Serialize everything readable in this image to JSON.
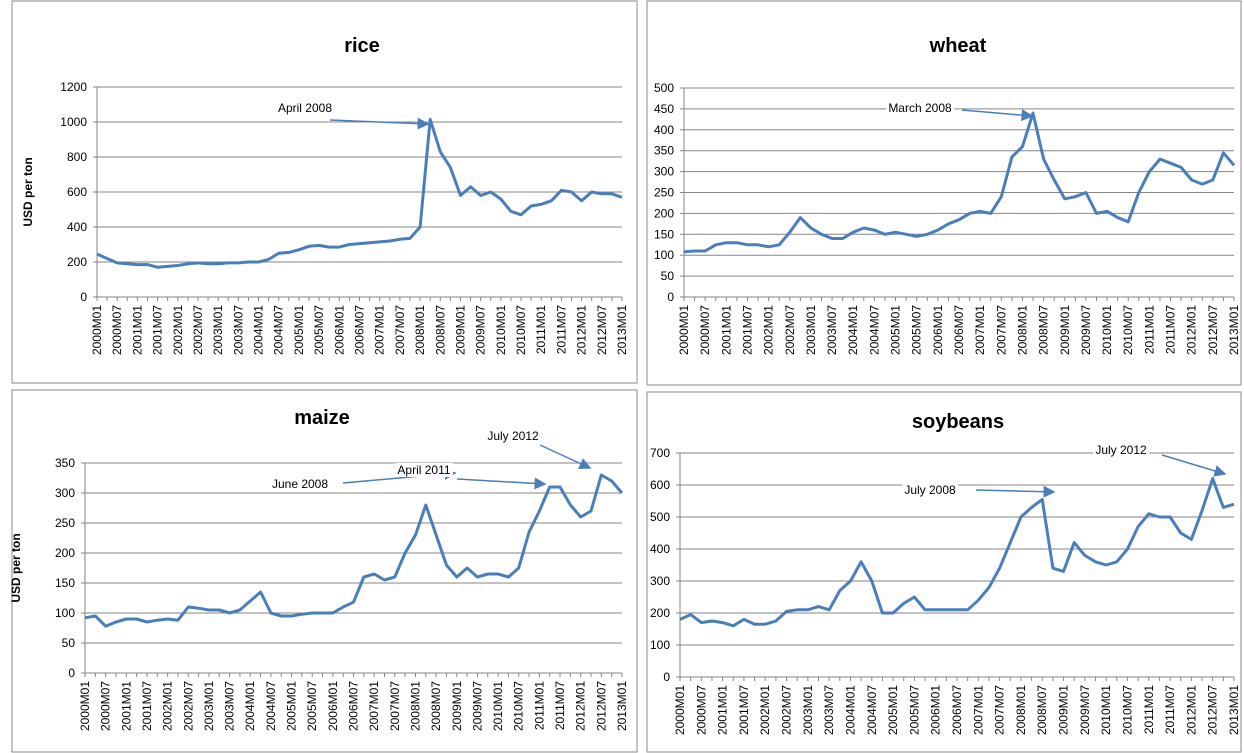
{
  "chart_data": [
    {
      "type": "line",
      "title": "rice",
      "ylabel": "USD per ton",
      "ylim": [
        0,
        1200
      ],
      "yticks": [
        0,
        200,
        400,
        600,
        800,
        1000,
        1200
      ],
      "grid": true,
      "categories": [
        "2000M01",
        null,
        "2000M07",
        null,
        "2001M01",
        null,
        "2001M07",
        null,
        "2002M01",
        null,
        "2002M07",
        null,
        "2003M01",
        null,
        "2003M07",
        null,
        "2004M01",
        null,
        "2004M07",
        null,
        "2005M01",
        null,
        "2005M07",
        null,
        "2006M01",
        null,
        "2006M07",
        null,
        "2007M01",
        null,
        "2007M07",
        null,
        "2008M01",
        null,
        "2008M07",
        null,
        "2009M01",
        null,
        "2009M07",
        null,
        "2010M01",
        null,
        "2010M07",
        null,
        "2011M01",
        null,
        "2011M07",
        null,
        "2012M01",
        null,
        "2012M07",
        null,
        "2013M01"
      ],
      "series": [
        {
          "color": "#4a7ebb",
          "values": [
            245,
            220,
            195,
            190,
            185,
            185,
            170,
            175,
            180,
            190,
            195,
            190,
            190,
            195,
            195,
            200,
            200,
            215,
            250,
            255,
            270,
            290,
            295,
            285,
            285,
            300,
            305,
            310,
            315,
            320,
            330,
            335,
            400,
            1015,
            830,
            740,
            580,
            630,
            580,
            600,
            560,
            490,
            470,
            520,
            530,
            550,
            610,
            600,
            550,
            600,
            590,
            590,
            570
          ]
        }
      ],
      "annotations": [
        "April 2008"
      ]
    },
    {
      "type": "line",
      "title": "wheat",
      "ylim": [
        0,
        500
      ],
      "yticks": [
        0,
        50,
        100,
        150,
        200,
        250,
        300,
        350,
        400,
        450,
        500
      ],
      "grid": true,
      "categories": [
        "2000M01",
        null,
        "2000M07",
        null,
        "2001M01",
        null,
        "2001M07",
        null,
        "2002M01",
        null,
        "2002M07",
        null,
        "2003M01",
        null,
        "2003M07",
        null,
        "2004M01",
        null,
        "2004M07",
        null,
        "2005M01",
        null,
        "2005M07",
        null,
        "2006M01",
        null,
        "2006M07",
        null,
        "2007M01",
        null,
        "2007M07",
        null,
        "2008M01",
        null,
        "2008M07",
        null,
        "2009M01",
        null,
        "2009M07",
        null,
        "2010M01",
        null,
        "2010M07",
        null,
        "2011M01",
        null,
        "2011M07",
        null,
        "2012M01",
        null,
        "2012M07",
        null,
        "2013M01"
      ],
      "series": [
        {
          "color": "#4a7ebb",
          "values": [
            108,
            110,
            110,
            125,
            130,
            130,
            125,
            125,
            120,
            125,
            155,
            190,
            165,
            150,
            140,
            140,
            155,
            165,
            160,
            150,
            155,
            150,
            145,
            150,
            160,
            175,
            185,
            200,
            205,
            200,
            240,
            335,
            360,
            440,
            330,
            280,
            235,
            240,
            250,
            200,
            205,
            190,
            180,
            250,
            300,
            330,
            320,
            310,
            280,
            270,
            280,
            345,
            315
          ]
        }
      ],
      "annotations": [
        "March 2008"
      ]
    },
    {
      "type": "line",
      "title": "maize",
      "ylabel": "USD per ton",
      "ylim": [
        0,
        350
      ],
      "yticks": [
        0,
        50,
        100,
        150,
        200,
        250,
        300,
        350
      ],
      "grid": true,
      "categories": [
        "2000M01",
        null,
        "2000M07",
        null,
        "2001M01",
        null,
        "2001M07",
        null,
        "2002M01",
        null,
        "2002M07",
        null,
        "2003M01",
        null,
        "2003M07",
        null,
        "2004M01",
        null,
        "2004M07",
        null,
        "2005M01",
        null,
        "2005M07",
        null,
        "2006M01",
        null,
        "2006M07",
        null,
        "2007M01",
        null,
        "2007M07",
        null,
        "2008M01",
        null,
        "2008M07",
        null,
        "2009M01",
        null,
        "2009M07",
        null,
        "2010M01",
        null,
        "2010M07",
        null,
        "2011M01",
        null,
        "2011M07",
        null,
        "2012M01",
        null,
        "2012M07",
        null,
        "2013M01"
      ],
      "series": [
        {
          "color": "#4a7ebb",
          "values": [
            92,
            95,
            78,
            85,
            90,
            90,
            85,
            88,
            90,
            88,
            110,
            108,
            105,
            105,
            100,
            105,
            120,
            135,
            100,
            95,
            95,
            98,
            100,
            100,
            100,
            110,
            118,
            160,
            165,
            155,
            160,
            200,
            230,
            280,
            230,
            180,
            160,
            175,
            160,
            165,
            165,
            160,
            175,
            235,
            270,
            310,
            310,
            280,
            260,
            270,
            330,
            320,
            300
          ]
        }
      ],
      "annotations": [
        "June 2008",
        "April 2011",
        "July 2012"
      ]
    },
    {
      "type": "line",
      "title": "soybeans",
      "ylim": [
        0,
        700
      ],
      "yticks": [
        0,
        100,
        200,
        300,
        400,
        500,
        600,
        700
      ],
      "grid": true,
      "categories": [
        "2000M01",
        null,
        "2000M07",
        null,
        "2001M01",
        null,
        "2001M07",
        null,
        "2002M01",
        null,
        "2002M07",
        null,
        "2003M01",
        null,
        "2003M07",
        null,
        "2004M01",
        null,
        "2004M07",
        null,
        "2005M01",
        null,
        "2005M07",
        null,
        "2006M01",
        null,
        "2006M07",
        null,
        "2007M01",
        null,
        "2007M07",
        null,
        "2008M01",
        null,
        "2008M07",
        null,
        "2009M01",
        null,
        "2009M07",
        null,
        "2010M01",
        null,
        "2010M07",
        null,
        "2011M01",
        null,
        "2011M07",
        null,
        "2012M01",
        null,
        "2012M07",
        null,
        "2013M01"
      ],
      "series": [
        {
          "color": "#4a7ebb",
          "values": [
            180,
            195,
            170,
            175,
            170,
            160,
            180,
            165,
            165,
            175,
            205,
            210,
            210,
            220,
            210,
            270,
            300,
            360,
            300,
            200,
            200,
            230,
            250,
            210,
            210,
            210,
            210,
            210,
            240,
            280,
            340,
            420,
            500,
            530,
            555,
            340,
            330,
            420,
            380,
            360,
            350,
            360,
            400,
            470,
            510,
            500,
            500,
            450,
            430,
            520,
            620,
            530,
            540
          ]
        }
      ],
      "annotations": [
        "July 2008",
        "July 2012"
      ]
    }
  ]
}
